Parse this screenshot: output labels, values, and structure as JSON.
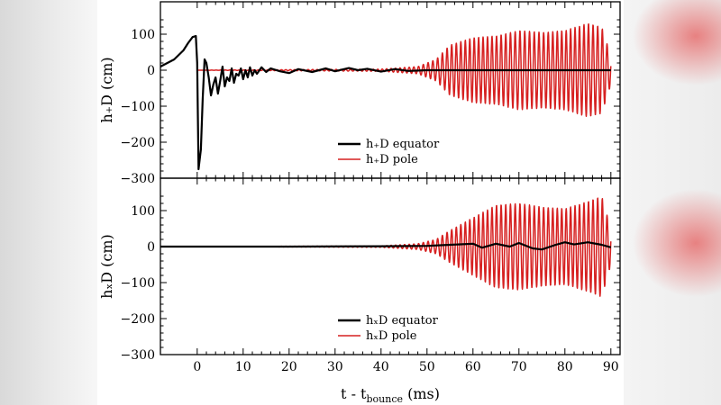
{
  "chart_data": [
    {
      "type": "line",
      "ylabel": "h₊D (cm)",
      "xlim": [
        -8,
        92
      ],
      "ylim": [
        -300,
        190
      ],
      "x_ticks": [
        0,
        10,
        20,
        30,
        40,
        50,
        60,
        70,
        80,
        90
      ],
      "y_ticks": [
        -300,
        -200,
        -100,
        0,
        100
      ],
      "y_tick_labels": [
        "−300",
        "−200",
        "−100",
        "0",
        "100"
      ],
      "legend_position": "lower-center",
      "series": [
        {
          "name": "h₊D equator",
          "color": "#000000",
          "x": [
            -8,
            -5,
            -3,
            -2,
            -1,
            -0.3,
            0,
            0.3,
            0.8,
            1.2,
            1.6,
            2.0,
            2.5,
            3.0,
            3.5,
            4.0,
            4.5,
            5.0,
            5.5,
            6.0,
            6.5,
            7.0,
            7.5,
            8.0,
            8.5,
            9.0,
            9.5,
            10.0,
            10.5,
            11.0,
            11.5,
            12.0,
            12.5,
            13.0,
            14.0,
            15.0,
            16.0,
            18.0,
            20.0,
            22.0,
            25.0,
            28.0,
            30.0,
            33.0,
            35.0,
            37.0,
            40.0,
            43.0,
            46.0,
            50.0,
            55.0,
            60.0,
            65.0,
            70.0,
            75.0,
            80.0,
            85.0,
            90.0
          ],
          "y": [
            10,
            30,
            55,
            75,
            92,
            95,
            20,
            -275,
            -220,
            -80,
            30,
            20,
            -20,
            -70,
            -40,
            -20,
            -65,
            -30,
            10,
            -45,
            -20,
            -30,
            5,
            -35,
            -10,
            -15,
            5,
            -25,
            0,
            -20,
            8,
            -15,
            0,
            -10,
            8,
            -5,
            5,
            -3,
            -8,
            3,
            -5,
            5,
            -3,
            6,
            0,
            4,
            -4,
            3,
            -2,
            0,
            0,
            0,
            0,
            0,
            0,
            0,
            0,
            0
          ]
        },
        {
          "name": "h₊D pole",
          "color": "#d62020",
          "x_start": 0,
          "x_end": 90,
          "oscillation_frequency_per_ms": 1.0,
          "amplitude_envelope": {
            "x": [
              0,
              40,
              48,
              52,
              55,
              60,
              65,
              70,
              75,
              80,
              85,
              88,
              90
            ],
            "amp": [
              0,
              3,
              10,
              30,
              70,
              90,
              95,
              110,
              105,
              110,
              130,
              120,
              40
            ]
          }
        }
      ]
    },
    {
      "type": "line",
      "ylabel": "hₓD (cm)",
      "xlabel": "t - t",
      "xlabel_sub": "bounce",
      "xlabel_unit": " (ms)",
      "xlim": [
        -8,
        92
      ],
      "ylim": [
        -300,
        190
      ],
      "x_ticks": [
        0,
        10,
        20,
        30,
        40,
        50,
        60,
        70,
        80,
        90
      ],
      "x_tick_labels": [
        "0",
        "10",
        "20",
        "30",
        "40",
        "50",
        "60",
        "70",
        "80",
        "90"
      ],
      "y_ticks": [
        -300,
        -200,
        -100,
        0,
        100
      ],
      "y_tick_labels": [
        "−300",
        "−200",
        "−100",
        "0",
        "100"
      ],
      "legend_position": "lower-center",
      "series": [
        {
          "name": "hₓD equator",
          "color": "#000000",
          "x": [
            -8,
            0,
            20,
            40,
            50,
            55,
            60,
            62,
            65,
            68,
            70,
            73,
            75,
            78,
            80,
            82,
            85,
            88,
            90
          ],
          "y": [
            0,
            0,
            0,
            1,
            2,
            5,
            8,
            -3,
            8,
            0,
            10,
            -5,
            -8,
            5,
            12,
            6,
            12,
            5,
            -2
          ]
        },
        {
          "name": "hₓD pole",
          "color": "#d62020",
          "x_start": 0,
          "x_end": 90,
          "oscillation_frequency_per_ms": 1.0,
          "amplitude_envelope": {
            "x": [
              0,
              40,
              48,
              52,
              55,
              60,
              65,
              70,
              75,
              80,
              85,
              88,
              90
            ],
            "amp": [
              0,
              2,
              8,
              20,
              45,
              80,
              115,
              120,
              110,
              105,
              125,
              140,
              50
            ]
          }
        }
      ]
    }
  ]
}
